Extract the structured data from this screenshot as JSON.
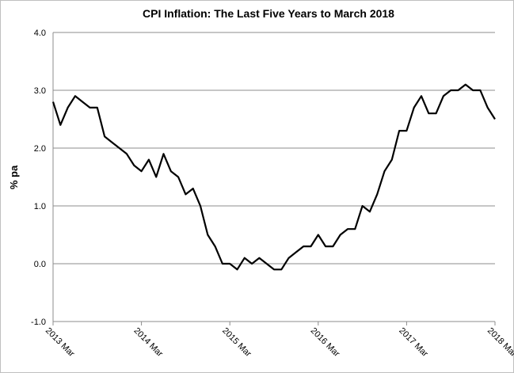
{
  "chart_data": {
    "type": "line",
    "title": "CPI Inflation: The Last Five Years to March 2018",
    "ylabel": "% pa",
    "xlabel": "",
    "ylim": [
      -1.0,
      4.0
    ],
    "yticks": [
      "-1.0",
      "0.0",
      "1.0",
      "2.0",
      "3.0",
      "4.0"
    ],
    "ytick_values": [
      -1.0,
      0.0,
      1.0,
      2.0,
      3.0,
      4.0
    ],
    "xtick_labels": [
      "2013 Mar",
      "2014 Mar",
      "2015 Mar",
      "2016 Mar",
      "2017 Mar",
      "2018 Mar"
    ],
    "grid": true,
    "legend": "none",
    "line_color": "#000000",
    "series": [
      {
        "x": [
          "2013-03",
          "2013-04",
          "2013-05",
          "2013-06",
          "2013-07",
          "2013-08",
          "2013-09",
          "2013-10",
          "2013-11",
          "2013-12",
          "2014-01",
          "2014-02",
          "2014-03",
          "2014-04",
          "2014-05",
          "2014-06",
          "2014-07",
          "2014-08",
          "2014-09",
          "2014-10",
          "2014-11",
          "2014-12",
          "2015-01",
          "2015-02",
          "2015-03",
          "2015-04",
          "2015-05",
          "2015-06",
          "2015-07",
          "2015-08",
          "2015-09",
          "2015-10",
          "2015-11",
          "2015-12",
          "2016-01",
          "2016-02",
          "2016-03",
          "2016-04",
          "2016-05",
          "2016-06",
          "2016-07",
          "2016-08",
          "2016-09",
          "2016-10",
          "2016-11",
          "2016-12",
          "2017-01",
          "2017-02",
          "2017-03",
          "2017-04",
          "2017-05",
          "2017-06",
          "2017-07",
          "2017-08",
          "2017-09",
          "2017-10",
          "2017-11",
          "2017-12",
          "2018-01",
          "2018-02",
          "2018-03"
        ],
        "values": [
          2.8,
          2.4,
          2.7,
          2.9,
          2.8,
          2.7,
          2.7,
          2.2,
          2.1,
          2.0,
          1.9,
          1.7,
          1.6,
          1.8,
          1.5,
          1.9,
          1.6,
          1.5,
          1.2,
          1.3,
          1.0,
          0.5,
          0.3,
          0.0,
          0.0,
          -0.1,
          0.1,
          0.0,
          0.1,
          0.0,
          -0.1,
          -0.1,
          0.1,
          0.2,
          0.3,
          0.3,
          0.5,
          0.3,
          0.3,
          0.5,
          0.6,
          0.6,
          1.0,
          0.9,
          1.2,
          1.6,
          1.8,
          2.3,
          2.3,
          2.7,
          2.9,
          2.6,
          2.6,
          2.9,
          3.0,
          3.0,
          3.1,
          3.0,
          3.0,
          2.7,
          2.5
        ]
      }
    ]
  }
}
